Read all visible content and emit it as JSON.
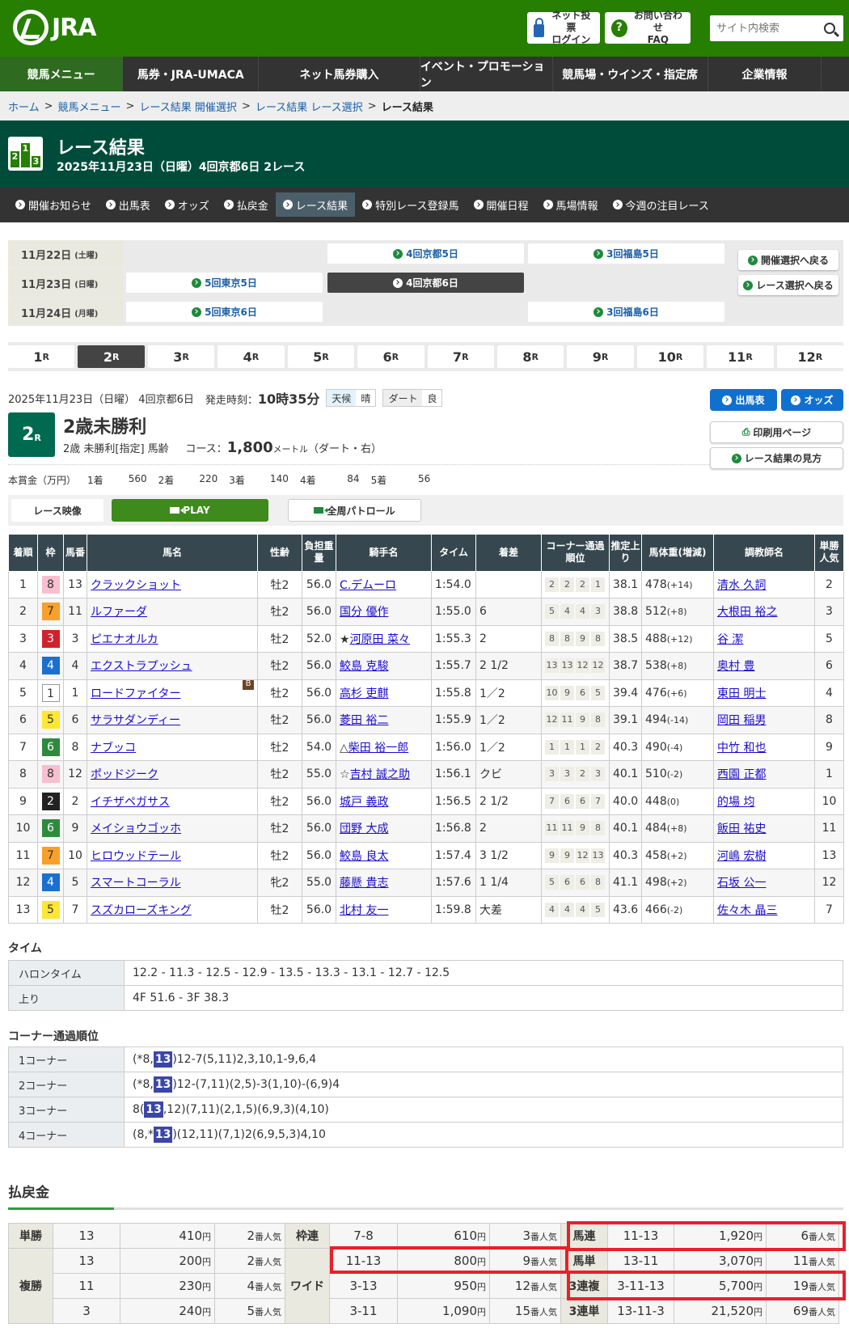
{
  "header": {
    "logo": "JRA",
    "login_line1": "ネット投票",
    "login_line2": "ログイン",
    "faq_line1": "お問い合わせ",
    "faq_line2": "FAQ",
    "search_placeholder": "サイト内検索"
  },
  "nav": [
    "競馬メニュー",
    "馬券・JRA-UMACA",
    "ネット馬券購入",
    "イベント・プロモーション",
    "競馬場・ウインズ・指定席",
    "企業情報"
  ],
  "breadcrumb": [
    "ホーム",
    "競馬メニュー",
    "レース結果 開催選択",
    "レース結果 レース選択"
  ],
  "breadcrumb_current": "レース結果",
  "page": {
    "title": "レース結果",
    "subtitle": "2025年11月23日（日曜）4回京都6日 2レース",
    "icon_digits": [
      "2",
      "1",
      "3"
    ]
  },
  "subnav": [
    "開催お知らせ",
    "出馬表",
    "オッズ",
    "払戻金",
    "レース結果",
    "特別レース登録馬",
    "開催日程",
    "馬場情報",
    "今週の注目レース"
  ],
  "subnav_active": "レース結果",
  "dates": [
    {
      "date": "11月22日",
      "dow": "(土曜)",
      "meets": [
        "",
        "4回京都5日",
        "3回福島5日"
      ]
    },
    {
      "date": "11月23日",
      "dow": "(日曜)",
      "meets": [
        "5回東京5日",
        "4回京都6日",
        ""
      ]
    },
    {
      "date": "11月24日",
      "dow": "(月曜)",
      "meets": [
        "5回東京6日",
        "",
        "3回福島6日"
      ]
    }
  ],
  "selected_meet": "4回京都6日",
  "back_buttons": [
    "開催選択へ戻る",
    "レース選択へ戻る"
  ],
  "race_tabs": [
    "1",
    "2",
    "3",
    "4",
    "5",
    "6",
    "7",
    "8",
    "9",
    "10",
    "11",
    "12"
  ],
  "race_tab_suffix": "R",
  "selected_race": "2",
  "race": {
    "date_line": "2025年11月23日（日曜） 4回京都6日",
    "start_label": "発走時刻：",
    "start_time": "10時35分",
    "weather_label": "天候",
    "weather": "晴",
    "track_label": "ダート",
    "track_cond": "良",
    "number": "2",
    "name": "2歳未勝利",
    "cond": "2歳  未勝利[指定]  馬齢",
    "course_label": "コース：",
    "distance": "1,800",
    "distance_unit": "メートル",
    "course_detail": "（ダート・右）"
  },
  "prize": {
    "label": "本賞金（万円）",
    "items": [
      [
        "1着",
        "560"
      ],
      [
        "2着",
        "220"
      ],
      [
        "3着",
        "140"
      ],
      [
        "4着",
        "84"
      ],
      [
        "5着",
        "56"
      ]
    ]
  },
  "side_buttons": {
    "entries": "出馬表",
    "odds": "オッズ",
    "print": "印刷用ページ",
    "guide": "レース結果の見方"
  },
  "video": {
    "label": "レース映像",
    "play": "PLAY",
    "patrol": "全周パトロール"
  },
  "results": {
    "headers": [
      "着順",
      "枠",
      "馬番",
      "馬名",
      "性齢",
      "負担重量",
      "騎手名",
      "タイム",
      "着差",
      "コーナー通過順位",
      "推定上り",
      "馬体重(増減)",
      "調教師名",
      "単勝人気"
    ],
    "rows": [
      [
        "1",
        "8",
        "13",
        "クラックショット",
        "",
        "牡2",
        "56.0",
        "",
        "C.デムーロ",
        "1:54.0",
        "",
        [
          "2",
          "2",
          "2",
          "1"
        ],
        "38.1",
        "478",
        "(+14)",
        "清水 久詞",
        "2"
      ],
      [
        "2",
        "7",
        "11",
        "ルファーダ",
        "",
        "牡2",
        "56.0",
        "",
        "国分 優作",
        "1:55.0",
        "6",
        [
          "5",
          "4",
          "4",
          "3"
        ],
        "38.8",
        "512",
        "(+8)",
        "大根田 裕之",
        "3"
      ],
      [
        "3",
        "3",
        "3",
        "ピエナオルカ",
        "",
        "牡2",
        "52.0",
        "★",
        "河原田 菜々",
        "1:55.3",
        "2",
        [
          "8",
          "8",
          "9",
          "8"
        ],
        "38.5",
        "488",
        "(+12)",
        "谷 潔",
        "5"
      ],
      [
        "4",
        "4",
        "4",
        "エクストラプッシュ",
        "",
        "牡2",
        "56.0",
        "",
        "鮫島 克駿",
        "1:55.7",
        "2 1/2",
        [
          "13",
          "13",
          "12",
          "12"
        ],
        "38.7",
        "538",
        "(+8)",
        "奥村 豊",
        "6"
      ],
      [
        "5",
        "1",
        "1",
        "ロードファイター",
        "B",
        "牡2",
        "56.0",
        "",
        "高杉 吏麒",
        "1:55.8",
        "1／2",
        [
          "10",
          "9",
          "6",
          "5"
        ],
        "39.4",
        "476",
        "(+6)",
        "東田 明士",
        "4"
      ],
      [
        "6",
        "5",
        "6",
        "サラサダンディー",
        "",
        "牡2",
        "56.0",
        "",
        "菱田 裕二",
        "1:55.9",
        "1／2",
        [
          "12",
          "11",
          "9",
          "8"
        ],
        "39.1",
        "494",
        "(-14)",
        "岡田 稲男",
        "8"
      ],
      [
        "7",
        "6",
        "8",
        "ナブッコ",
        "",
        "牡2",
        "54.0",
        "△",
        "柴田 裕一郎",
        "1:56.0",
        "1／2",
        [
          "1",
          "1",
          "1",
          "2"
        ],
        "40.3",
        "490",
        "(-4)",
        "中竹 和也",
        "9"
      ],
      [
        "8",
        "8",
        "12",
        "ポッドジーク",
        "",
        "牡2",
        "55.0",
        "☆",
        "吉村 誠之助",
        "1:56.1",
        "クビ",
        [
          "3",
          "3",
          "2",
          "3"
        ],
        "40.1",
        "510",
        "(-2)",
        "西園 正都",
        "1"
      ],
      [
        "9",
        "2",
        "2",
        "イチザペガサス",
        "",
        "牡2",
        "56.0",
        "",
        "城戸 義政",
        "1:56.5",
        "2 1/2",
        [
          "7",
          "6",
          "6",
          "7"
        ],
        "40.0",
        "448",
        "(0)",
        "的場 均",
        "10"
      ],
      [
        "10",
        "6",
        "9",
        "メイショウゴッホ",
        "",
        "牡2",
        "56.0",
        "",
        "団野 大成",
        "1:56.8",
        "2",
        [
          "11",
          "11",
          "9",
          "8"
        ],
        "40.1",
        "484",
        "(+8)",
        "飯田 祐史",
        "11"
      ],
      [
        "11",
        "7",
        "10",
        "ヒロウッドテール",
        "",
        "牡2",
        "56.0",
        "",
        "鮫島 良太",
        "1:57.4",
        "3 1/2",
        [
          "9",
          "9",
          "12",
          "13"
        ],
        "40.3",
        "458",
        "(+2)",
        "河嶋 宏樹",
        "13"
      ],
      [
        "12",
        "4",
        "5",
        "スマートコーラル",
        "",
        "牝2",
        "55.0",
        "",
        "藤懸 貴志",
        "1:57.6",
        "1 1/4",
        [
          "5",
          "6",
          "6",
          "8"
        ],
        "41.1",
        "498",
        "(+2)",
        "石坂 公一",
        "12"
      ],
      [
        "13",
        "5",
        "7",
        "スズカローズキング",
        "",
        "牡2",
        "56.0",
        "",
        "北村 友一",
        "1:59.8",
        "大差",
        [
          "4",
          "4",
          "4",
          "5"
        ],
        "43.6",
        "466",
        "(-2)",
        "佐々木 晶三",
        "7"
      ]
    ]
  },
  "waku_colors": {
    "1": [
      "#ffffff",
      "#333333"
    ],
    "2": [
      "#222222",
      "#ffffff"
    ],
    "3": [
      "#d0222b",
      "#ffffff"
    ],
    "4": [
      "#1a6fd0",
      "#ffffff"
    ],
    "5": [
      "#ffe632",
      "#333333"
    ],
    "6": [
      "#2e8a3c",
      "#ffffff"
    ],
    "7": [
      "#f9a02a",
      "#333333"
    ],
    "8": [
      "#f7bfd0",
      "#333333"
    ]
  },
  "time": {
    "heading": "タイム",
    "rows": [
      [
        "ハロンタイム",
        "12.2 - 11.3 - 12.5 - 12.9 - 13.5 - 13.3 - 13.1 - 12.7 - 12.5"
      ],
      [
        "上り",
        "4F 51.6 - 3F 38.3"
      ]
    ]
  },
  "corners": {
    "heading": "コーナー通過順位",
    "rows": [
      [
        "1コーナー",
        "(*8,",
        "13",
        ")12-7(5,11)2,3,10,1-9,6,4"
      ],
      [
        "2コーナー",
        "(*8,",
        "13",
        ")12-(7,11)(2,5)-3(1,10)-(6,9)4"
      ],
      [
        "3コーナー",
        "8(",
        "13",
        ",12)(7,11)(2,1,5)(6,9,3)(4,10)"
      ],
      [
        "4コーナー",
        "(8,*",
        "13",
        ")(12,11)(7,1)2(6,9,5,3)4,10"
      ]
    ]
  },
  "payout": {
    "heading": "払戻金",
    "yen": "円",
    "pop_suffix": "番人気",
    "win": {
      "label": "単勝",
      "rows": [
        [
          "13",
          "410",
          "2"
        ]
      ]
    },
    "place": {
      "label": "複勝",
      "rows": [
        [
          "13",
          "200",
          "2"
        ],
        [
          "11",
          "230",
          "4"
        ],
        [
          "3",
          "240",
          "5"
        ]
      ]
    },
    "bracket": {
      "label": "枠連",
      "rows": [
        [
          "7-8",
          "610",
          "3"
        ]
      ]
    },
    "wide": {
      "label": "ワイド",
      "rows": [
        [
          "11-13",
          "800",
          "9"
        ],
        [
          "3-13",
          "950",
          "12"
        ],
        [
          "3-11",
          "1,090",
          "15"
        ]
      ]
    },
    "right": [
      {
        "label": "馬連",
        "combo": "11-13",
        "amount": "1,920",
        "pop": "6"
      },
      {
        "label": "馬単",
        "combo": "13-11",
        "amount": "3,070",
        "pop": "11"
      },
      {
        "label": "3連複",
        "combo": "3-11-13",
        "amount": "5,700",
        "pop": "19"
      },
      {
        "label": "3連単",
        "combo": "13-11-3",
        "amount": "21,520",
        "pop": "69"
      }
    ],
    "highlight_color": "#e8202a"
  }
}
